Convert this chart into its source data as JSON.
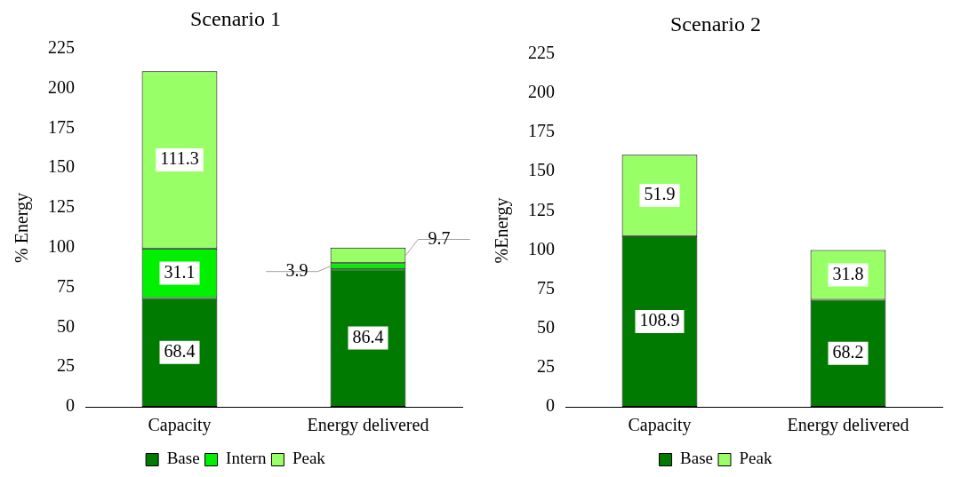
{
  "chart_data": [
    {
      "type": "bar",
      "title": "Scenario 1",
      "ylabel": "% Energy",
      "categories": [
        "Capacity",
        "Energy delivered"
      ],
      "stacked": true,
      "ylim": [
        0,
        225
      ],
      "yticks": [
        0,
        25,
        50,
        75,
        100,
        125,
        150,
        175,
        200,
        225
      ],
      "legend": "bottom",
      "data_labels": true,
      "grid": false,
      "series": [
        {
          "name": "Base",
          "color": "#007a00",
          "values": [
            68.4,
            86.4
          ]
        },
        {
          "name": "Intern",
          "color": "#00f000",
          "values": [
            31.1,
            3.9
          ]
        },
        {
          "name": "Peak",
          "color": "#99ff66",
          "values": [
            111.3,
            9.7
          ]
        }
      ]
    },
    {
      "type": "bar",
      "title": "Scenario 2",
      "ylabel": "%Energy",
      "categories": [
        "Capacity",
        "Energy delivered"
      ],
      "stacked": true,
      "ylim": [
        0,
        225
      ],
      "yticks": [
        0,
        25,
        50,
        75,
        100,
        125,
        150,
        175,
        200,
        225
      ],
      "legend": "bottom",
      "data_labels": true,
      "grid": false,
      "series": [
        {
          "name": "Base",
          "color": "#007a00",
          "values": [
            108.9,
            68.2
          ]
        },
        {
          "name": "Peak",
          "color": "#99ff66",
          "values": [
            51.9,
            31.8
          ]
        }
      ]
    }
  ]
}
